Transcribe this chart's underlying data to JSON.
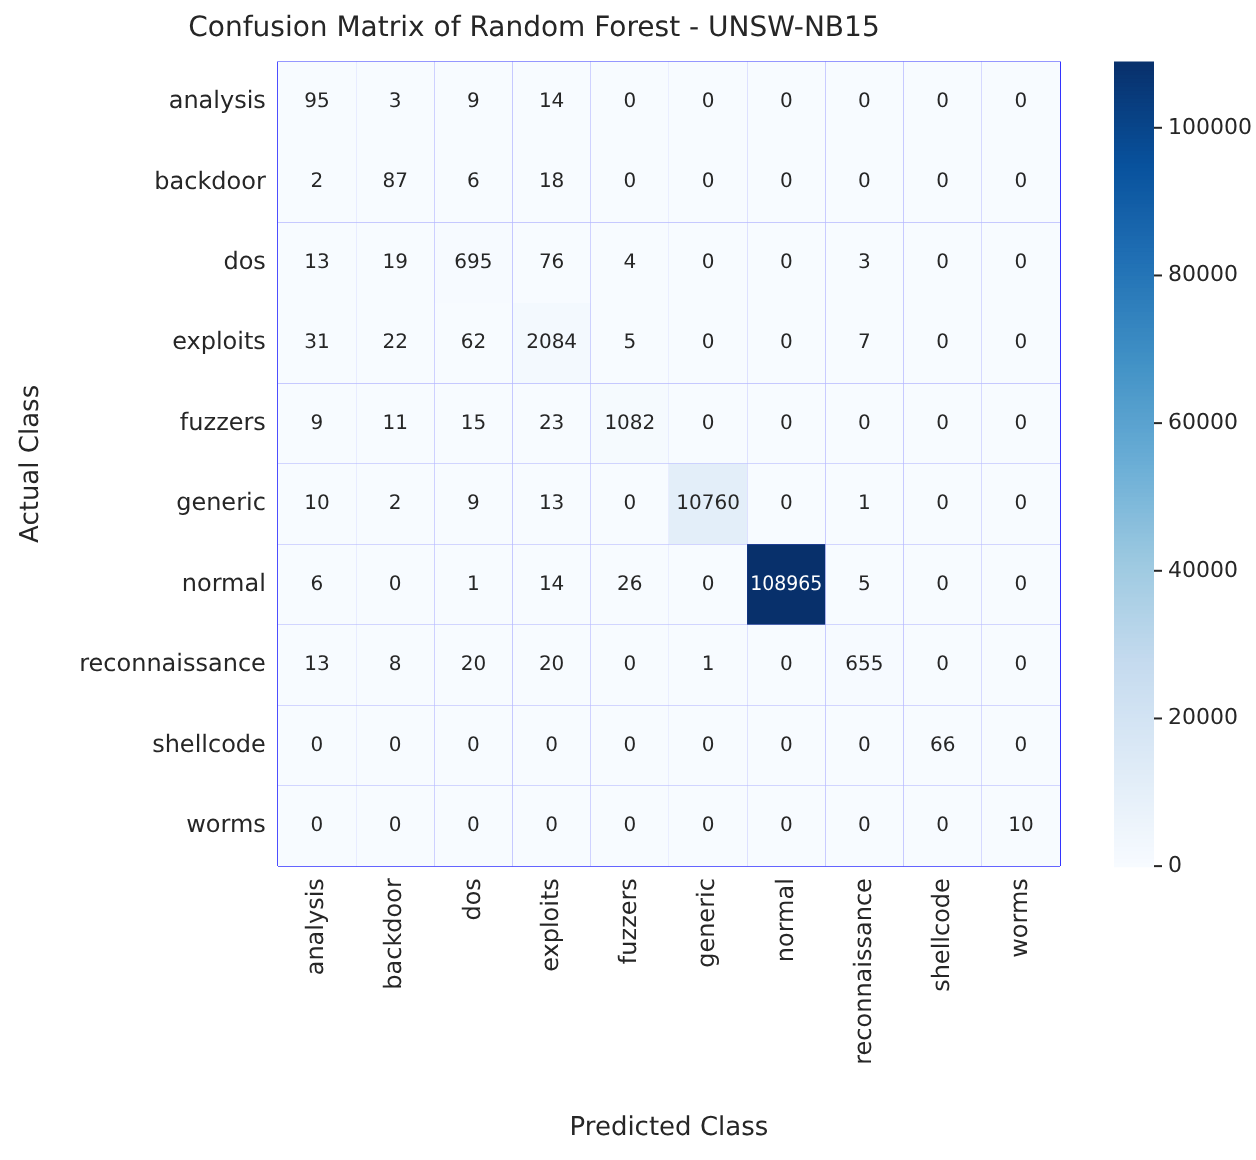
{
  "chart_data": {
    "type": "heatmap",
    "title": "Confusion Matrix of Random Forest - UNSW-NB15",
    "xlabel": "Predicted Class",
    "ylabel": "Actual Class",
    "categories": [
      "analysis",
      "backdoor",
      "dos",
      "exploits",
      "fuzzers",
      "generic",
      "normal",
      "reconnaissance",
      "shellcode",
      "worms"
    ],
    "y_categories": [
      "analysis",
      "backdoor",
      "dos",
      "exploits",
      "fuzzers",
      "generic",
      "normal",
      "reconnaissance",
      "shellcode",
      "worms"
    ],
    "cells": [
      [
        95,
        3,
        9,
        14,
        0,
        0,
        0,
        0,
        0,
        0
      ],
      [
        2,
        87,
        6,
        18,
        0,
        0,
        0,
        0,
        0,
        0
      ],
      [
        13,
        19,
        695,
        76,
        4,
        0,
        0,
        3,
        0,
        0
      ],
      [
        31,
        22,
        62,
        2084,
        5,
        0,
        0,
        7,
        0,
        0
      ],
      [
        9,
        11,
        15,
        23,
        1082,
        0,
        0,
        0,
        0,
        0
      ],
      [
        10,
        2,
        9,
        13,
        0,
        10760,
        0,
        1,
        0,
        0
      ],
      [
        6,
        0,
        1,
        14,
        26,
        0,
        108965,
        5,
        0,
        0
      ],
      [
        13,
        8,
        20,
        20,
        0,
        1,
        0,
        655,
        0,
        0
      ],
      [
        0,
        0,
        0,
        0,
        0,
        0,
        0,
        0,
        66,
        0
      ],
      [
        0,
        0,
        0,
        0,
        0,
        0,
        0,
        0,
        0,
        10
      ]
    ],
    "clim": [
      0,
      108965
    ],
    "cticks": [
      0,
      20000,
      40000,
      60000,
      80000,
      100000
    ],
    "data_labels": true,
    "grid": true
  }
}
